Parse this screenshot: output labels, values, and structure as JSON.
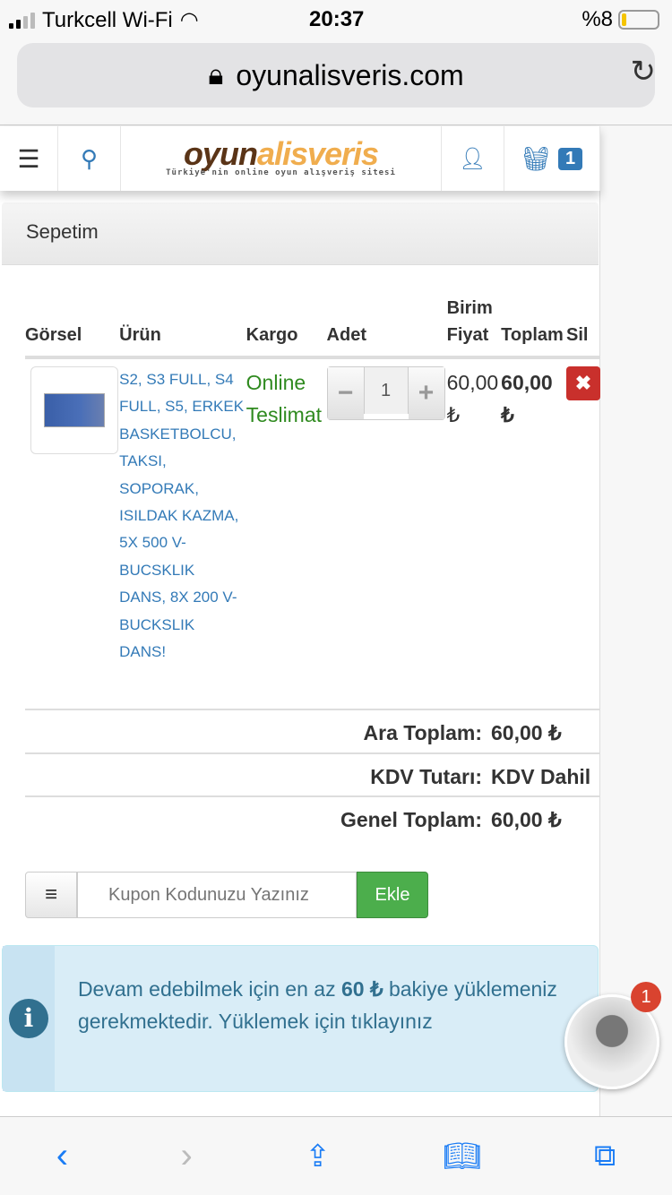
{
  "status": {
    "carrier": "Turkcell Wi-Fi",
    "time": "20:37",
    "battery": "%8"
  },
  "browser": {
    "url": "oyunalisveris.com"
  },
  "header": {
    "logo_a": "oyun",
    "logo_b": "alisveris",
    "slogan": "Türkiye'nin online oyun alışveriş sitesi",
    "cart_count": "1"
  },
  "panel": {
    "title": "Sepetim"
  },
  "table": {
    "headers": [
      "Görsel",
      "Ürün",
      "Kargo",
      "Adet",
      "Birim Fiyat",
      "Toplam",
      "Sil"
    ],
    "rows": [
      {
        "product": "S2, S3 FULL, S4 FULL, S5, ERKEK BASKETBOLCU, TAKSI, SOPORAK, ISILDAK KAZMA, 5X 500 V-BUCSKLIK DANS, 8X 200 V-BUCKSLIK DANS!",
        "cargo": "Online Teslimat",
        "qty": "1",
        "unit_price": "60,00 ₺",
        "total": "60,00 ₺",
        "delete": "✖"
      }
    ]
  },
  "totals": [
    {
      "label": "Ara Toplam:",
      "value": "60,00 ₺"
    },
    {
      "label": "KDV Tutarı:",
      "value": "KDV Dahil"
    },
    {
      "label": "Genel Toplam:",
      "value": "60,00 ₺"
    }
  ],
  "coupon": {
    "placeholder": "Kupon Kodunuzu Yazınız",
    "button": "Ekle"
  },
  "alert": {
    "pre": "Devam edebilmek için en az ",
    "amount": "60 ₺",
    "post": " bakiye yüklemeniz gerekmektedir. Yüklemek için tıklayınız"
  },
  "chat": {
    "badge": "1"
  },
  "colors": {
    "accent": "#337ab7",
    "success": "#4cae4c",
    "danger": "#c9302c",
    "info_bg": "#d9edf7"
  }
}
